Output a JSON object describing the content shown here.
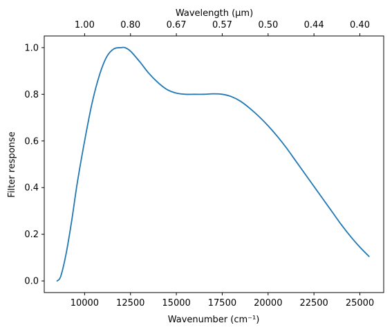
{
  "chart_data": {
    "type": "line",
    "title": "",
    "xlabel": "Wavenumber (cm⁻¹)",
    "ylabel": "Filter response",
    "top_axis_label": "Wavelength (μm)",
    "xlim": [
      7800,
      26300
    ],
    "ylim": [
      -0.05,
      1.05
    ],
    "grid": false,
    "xticks": [
      10000,
      12500,
      15000,
      17500,
      20000,
      22500,
      25000
    ],
    "xtick_labels": [
      "10000",
      "12500",
      "15000",
      "17500",
      "20000",
      "22500",
      "25000"
    ],
    "yticks": [
      0.0,
      0.2,
      0.4,
      0.6,
      0.8,
      1.0
    ],
    "ytick_labels": [
      "0.0",
      "0.2",
      "0.4",
      "0.6",
      "0.8",
      "1.0"
    ],
    "top_ticks_wavenumber": [
      10000,
      12500,
      15000,
      17500,
      20000,
      22500,
      25000
    ],
    "top_tick_labels": [
      "1.00",
      "0.80",
      "0.67",
      "0.57",
      "0.50",
      "0.44",
      "0.40"
    ],
    "series": [
      {
        "color": "#1f77b4",
        "x": [
          8500,
          8700,
          9000,
          9300,
          9600,
          10000,
          10400,
          10800,
          11200,
          11600,
          12000,
          12200,
          12500,
          13000,
          13500,
          14000,
          14500,
          15000,
          15500,
          16000,
          16500,
          17000,
          17500,
          18000,
          18500,
          19000,
          19500,
          20000,
          20500,
          21000,
          21500,
          22000,
          22500,
          23000,
          23500,
          24000,
          24500,
          25000,
          25500
        ],
        "y": [
          0.0,
          0.02,
          0.12,
          0.26,
          0.42,
          0.6,
          0.76,
          0.88,
          0.96,
          0.995,
          1.0,
          1.0,
          0.985,
          0.94,
          0.89,
          0.85,
          0.82,
          0.805,
          0.8,
          0.8,
          0.8,
          0.802,
          0.8,
          0.79,
          0.77,
          0.74,
          0.705,
          0.665,
          0.62,
          0.57,
          0.515,
          0.46,
          0.405,
          0.35,
          0.295,
          0.24,
          0.19,
          0.145,
          0.105
        ]
      }
    ]
  }
}
